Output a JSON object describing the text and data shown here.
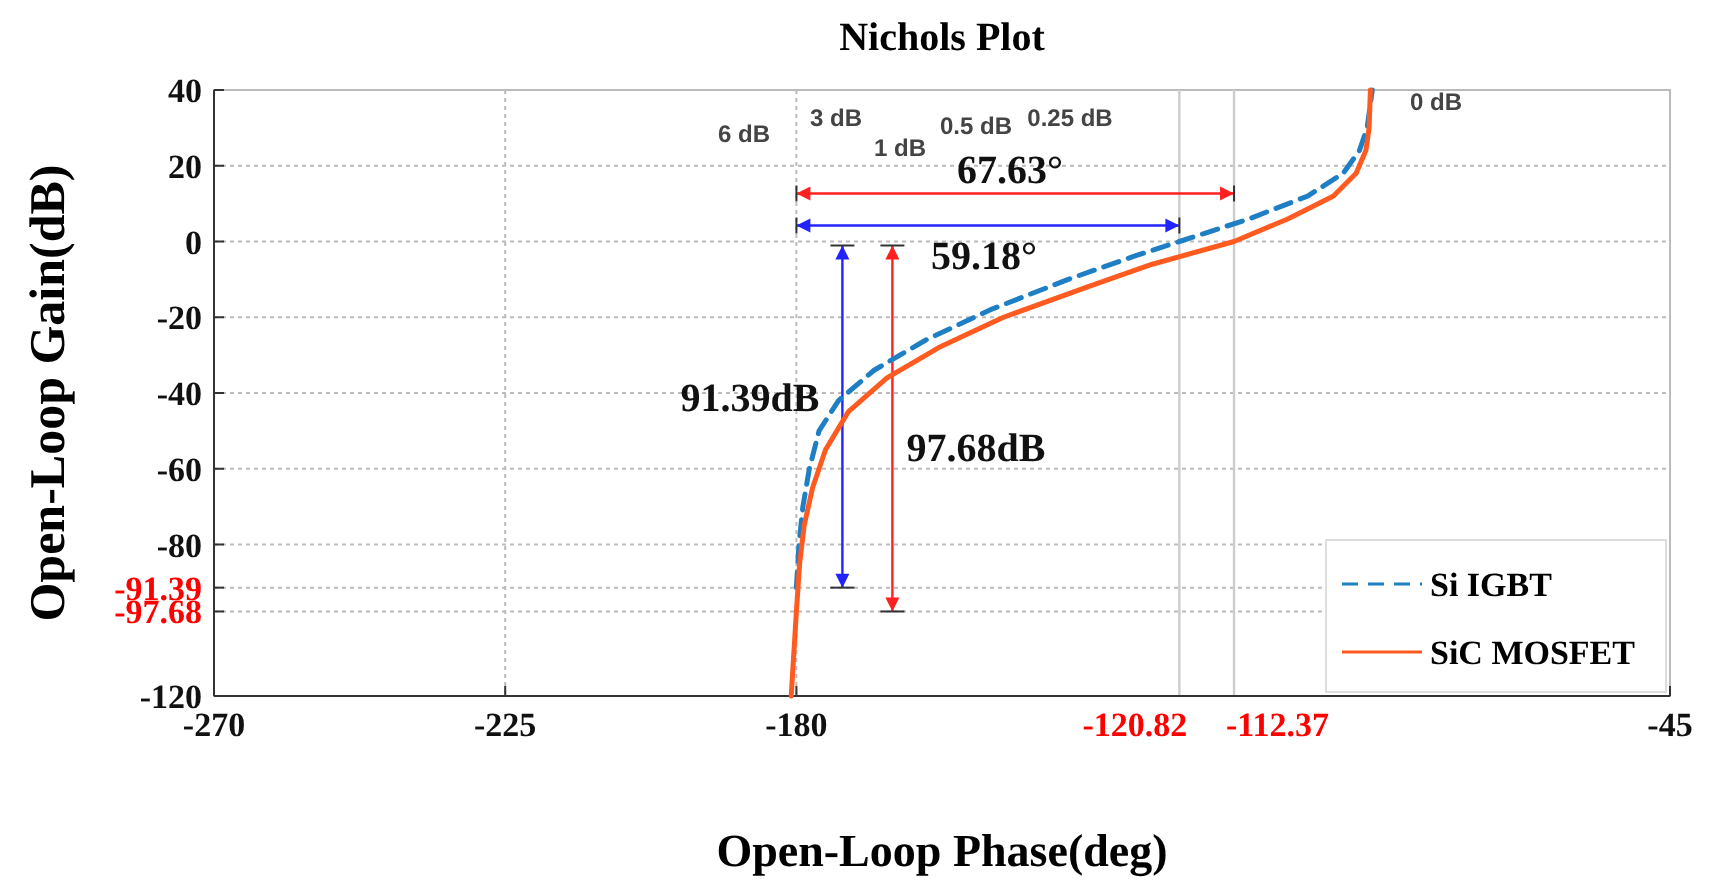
{
  "chart_data": {
    "type": "line",
    "title": "Nichols Plot",
    "xlabel": "Open-Loop Phase(deg)",
    "ylabel": "Open-Loop Gain(dB)",
    "xlim": [
      -270,
      -45
    ],
    "ylim": [
      -120,
      40
    ],
    "xticks": [
      -270,
      -225,
      -180,
      -45
    ],
    "ref_lines": [
      {
        "axis": "x",
        "value": -120.82,
        "label": "-120.82"
      },
      {
        "axis": "x",
        "value": -112.37,
        "label": "-112.37"
      }
    ],
    "yticks": [
      40,
      20,
      0,
      -20,
      -40,
      -60,
      -80,
      -91.39,
      -97.68,
      -120
    ],
    "grid": true,
    "legend": "bottom right",
    "marker": "none",
    "series": [
      {
        "name": "Si IGBT",
        "color": "#1f7fc4",
        "line_style": "dashed",
        "x": [
          -180,
          -179.6,
          -179,
          -178,
          -176.5,
          -173.5,
          -168,
          -160,
          -150,
          -138,
          -128,
          -120.82,
          -110,
          -101,
          -95.5,
          -93,
          -91.8,
          -91
        ],
        "values": [
          -91.39,
          -80,
          -70,
          -60,
          -50,
          -42,
          -34,
          -26,
          -18,
          -10,
          -4,
          0,
          6,
          12,
          18,
          24,
          30,
          40
        ]
      },
      {
        "name": "SiC MOSFET",
        "color": "#ff5a1f",
        "line_style": "solid",
        "x": [
          -180.8,
          -180,
          -179.5,
          -178.8,
          -177.5,
          -175.5,
          -172,
          -166,
          -158,
          -148,
          -135,
          -125,
          -112.37,
          -104,
          -97,
          -93.5,
          -92,
          -91.5,
          -91.3
        ],
        "values": [
          -120,
          -97.68,
          -85,
          -75,
          -65,
          -55,
          -45,
          -36,
          -28,
          -20,
          -12,
          -6,
          0,
          6,
          12,
          18,
          24,
          30,
          40
        ]
      }
    ],
    "annotations": [
      "0 dB",
      "0.25 dB",
      "0.5 dB",
      "1 dB",
      "3 dB",
      "6 dB",
      "67.63°",
      "59.18°",
      "91.39dB",
      "97.68dB"
    ]
  }
}
